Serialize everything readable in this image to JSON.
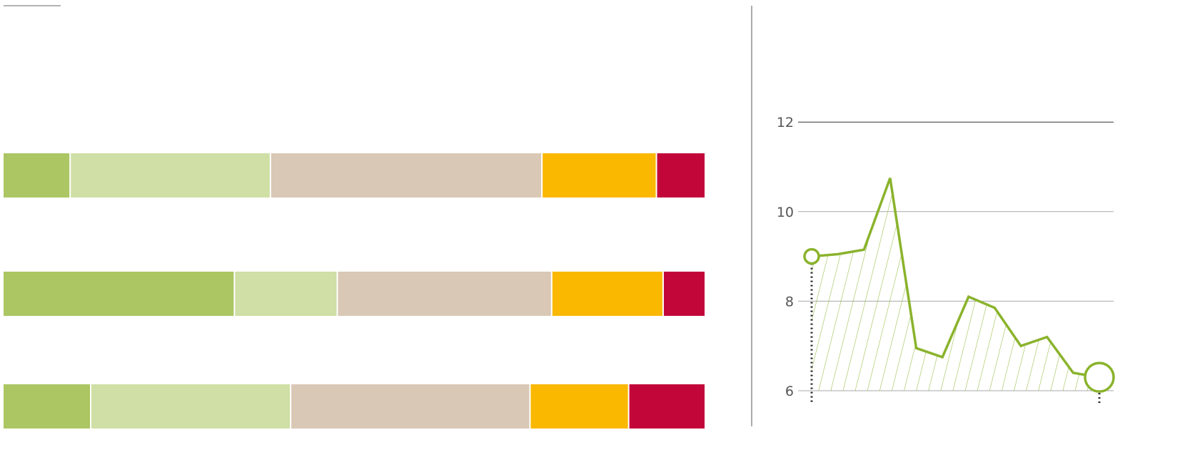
{
  "chart_data": [
    {
      "type": "bar",
      "orientation": "horizontal",
      "stacked": true,
      "normalized": true,
      "rows": [
        {
          "segments": [
            9.55,
            28.46,
            38.56,
            16.27,
            6.74
          ]
        },
        {
          "segments": [
            33.03,
            14.68,
            30.58,
            15.9,
            5.81
          ]
        },
        {
          "segments": [
            12.53,
            28.52,
            34.15,
            14.07,
            10.73
          ]
        }
      ],
      "segment_colors": [
        "#abc662",
        "#cfdfa5",
        "#d8c8b5",
        "#fab800",
        "#c3063a"
      ],
      "axis": "none",
      "legend": "none"
    },
    {
      "type": "area",
      "line_color": "#8ab32c",
      "fill": "diagonal-hatch",
      "ylim": [
        6,
        12
      ],
      "yticks": [
        "6",
        "8",
        "10",
        "12"
      ],
      "grid": true,
      "y": [
        9.0,
        9.05,
        9.15,
        10.75,
        6.95,
        6.75,
        8.1,
        7.85,
        7.0,
        7.2,
        6.4,
        6.3
      ],
      "markers": {
        "first": true,
        "last": true,
        "style": "hollow-circle"
      },
      "drop_lines": "dotted"
    }
  ]
}
